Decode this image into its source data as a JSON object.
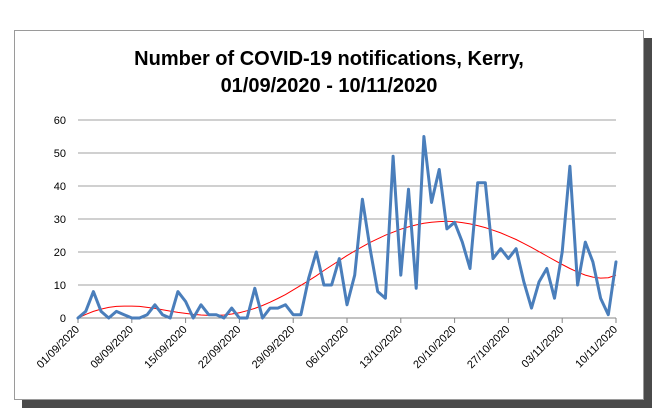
{
  "chart_data": {
    "type": "line",
    "title_line1": "Number of COVID-19 notifications, Kerry,",
    "title_line2": "01/09/2020 - 10/11/2020",
    "xlabel": "",
    "ylabel": "",
    "ylim": [
      0,
      60
    ],
    "y_ticks": [
      "0",
      "10",
      "20",
      "30",
      "40",
      "50",
      "60"
    ],
    "grid": "horizontal",
    "legend": "none",
    "colors": {
      "series": "#4a7ebb",
      "trend": "#ff0000",
      "grid": "#a0a0a0"
    },
    "x_tick_labels": [
      "01/09/2020",
      "08/09/2020",
      "15/09/2020",
      "22/09/2020",
      "29/09/2020",
      "06/10/2020",
      "13/10/2020",
      "20/10/2020",
      "27/10/2020",
      "03/11/2020",
      "10/11/2020"
    ],
    "x": [
      "01/09/2020",
      "02/09/2020",
      "03/09/2020",
      "04/09/2020",
      "05/09/2020",
      "06/09/2020",
      "07/09/2020",
      "08/09/2020",
      "09/09/2020",
      "10/09/2020",
      "11/09/2020",
      "12/09/2020",
      "13/09/2020",
      "14/09/2020",
      "15/09/2020",
      "16/09/2020",
      "17/09/2020",
      "18/09/2020",
      "19/09/2020",
      "20/09/2020",
      "21/09/2020",
      "22/09/2020",
      "23/09/2020",
      "24/09/2020",
      "25/09/2020",
      "26/09/2020",
      "27/09/2020",
      "28/09/2020",
      "29/09/2020",
      "30/09/2020",
      "01/10/2020",
      "02/10/2020",
      "03/10/2020",
      "04/10/2020",
      "05/10/2020",
      "06/10/2020",
      "07/10/2020",
      "08/10/2020",
      "09/10/2020",
      "10/10/2020",
      "11/10/2020",
      "12/10/2020",
      "13/10/2020",
      "14/10/2020",
      "15/10/2020",
      "16/10/2020",
      "17/10/2020",
      "18/10/2020",
      "19/10/2020",
      "20/10/2020",
      "21/10/2020",
      "22/10/2020",
      "23/10/2020",
      "24/10/2020",
      "25/10/2020",
      "26/10/2020",
      "27/10/2020",
      "28/10/2020",
      "29/10/2020",
      "30/10/2020",
      "31/10/2020",
      "01/11/2020",
      "02/11/2020",
      "03/11/2020",
      "04/11/2020",
      "05/11/2020",
      "06/11/2020",
      "07/11/2020",
      "08/11/2020",
      "09/11/2020",
      "10/11/2020"
    ],
    "series": [
      {
        "values": [
          0,
          2,
          8,
          2,
          0,
          2,
          1,
          0,
          0,
          1,
          4,
          1,
          0,
          8,
          5,
          0,
          4,
          1,
          1,
          0,
          3,
          0,
          0,
          9,
          0,
          3,
          3,
          4,
          1,
          1,
          12,
          20,
          10,
          10,
          18,
          4,
          13,
          36,
          21,
          8,
          6,
          49,
          13,
          39,
          9,
          55,
          35,
          45,
          27,
          29,
          23,
          15,
          41,
          41,
          18,
          21,
          18,
          21,
          11,
          3,
          11,
          15,
          6,
          20,
          46,
          10,
          23,
          17,
          6,
          1,
          17
        ]
      },
      {
        "type": "trend",
        "values": [
          0,
          1.1,
          2,
          2.7,
          3.2,
          3.5,
          3.6,
          3.6,
          3.5,
          3.2,
          2.9,
          2.5,
          2.1,
          1.7,
          1.4,
          1.1,
          0.9,
          0.8,
          0.8,
          0.9,
          1.2,
          1.6,
          2.2,
          2.9,
          3.8,
          4.8,
          5.9,
          7.1,
          8.5,
          9.9,
          11.3,
          12.8,
          14.4,
          15.9,
          17.4,
          18.9,
          20.3,
          21.6,
          22.9,
          24,
          25.1,
          26,
          26.9,
          27.6,
          28.2,
          28.7,
          29,
          29.2,
          29.3,
          29.2,
          28.9,
          28.5,
          28,
          27.4,
          26.6,
          25.8,
          24.8,
          23.8,
          22.6,
          21.4,
          20.1,
          18.8,
          17.5,
          16.2,
          15,
          13.9,
          13,
          12.4,
          12.1,
          12.2,
          13
        ]
      }
    ]
  }
}
